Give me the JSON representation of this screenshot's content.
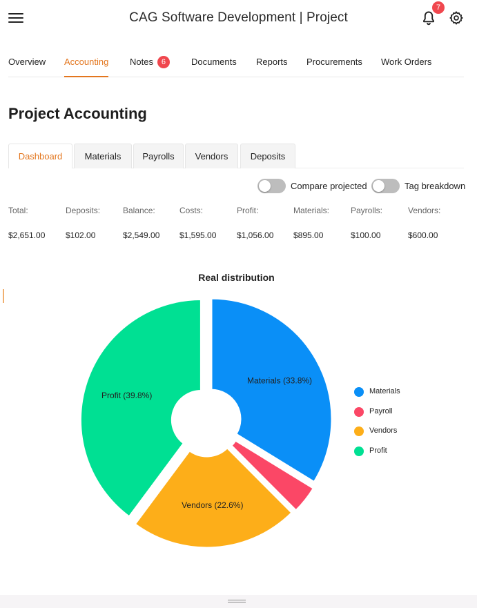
{
  "app": {
    "title": "CAG Software Development | Project",
    "notifications_count": "7"
  },
  "nav": {
    "items": [
      {
        "label": "Overview"
      },
      {
        "label": "Accounting",
        "active": true
      },
      {
        "label": "Notes",
        "badge": "6"
      },
      {
        "label": "Documents"
      },
      {
        "label": "Reports"
      },
      {
        "label": "Procurements"
      },
      {
        "label": "Work Orders"
      }
    ]
  },
  "page": {
    "title": "Project Accounting"
  },
  "subtabs": [
    {
      "label": "Dashboard",
      "active": true
    },
    {
      "label": "Materials"
    },
    {
      "label": "Payrolls"
    },
    {
      "label": "Vendors"
    },
    {
      "label": "Deposits"
    }
  ],
  "toggles": {
    "compare_projected": {
      "label": "Compare projected",
      "on": false
    },
    "tag_breakdown": {
      "label": "Tag breakdown",
      "on": false
    }
  },
  "summary": [
    {
      "label": "Total:",
      "value": "$2,651.00"
    },
    {
      "label": "Deposits:",
      "value": "$102.00"
    },
    {
      "label": "Balance:",
      "value": "$2,549.00"
    },
    {
      "label": "Costs:",
      "value": "$1,595.00"
    },
    {
      "label": "Profit:",
      "value": "$1,056.00"
    },
    {
      "label": "Materials:",
      "value": "$895.00"
    },
    {
      "label": "Payrolls:",
      "value": "$100.00"
    },
    {
      "label": "Vendors:",
      "value": "$600.00"
    }
  ],
  "chart_data": {
    "type": "pie",
    "title": "Real distribution",
    "categories": [
      "Materials",
      "Payroll",
      "Vendors",
      "Profit"
    ],
    "values": [
      895,
      100,
      600,
      1056
    ],
    "labels": [
      "Materials (33.8%)",
      "",
      "Vendors (22.6%)",
      "Profit (39.8%)"
    ],
    "colors": [
      "#0a8ff7",
      "#fb4766",
      "#fdae19",
      "#00e093"
    ],
    "legend_placement": "right"
  },
  "colors": {
    "accent": "#e3761e",
    "badge": "#f0474e"
  }
}
